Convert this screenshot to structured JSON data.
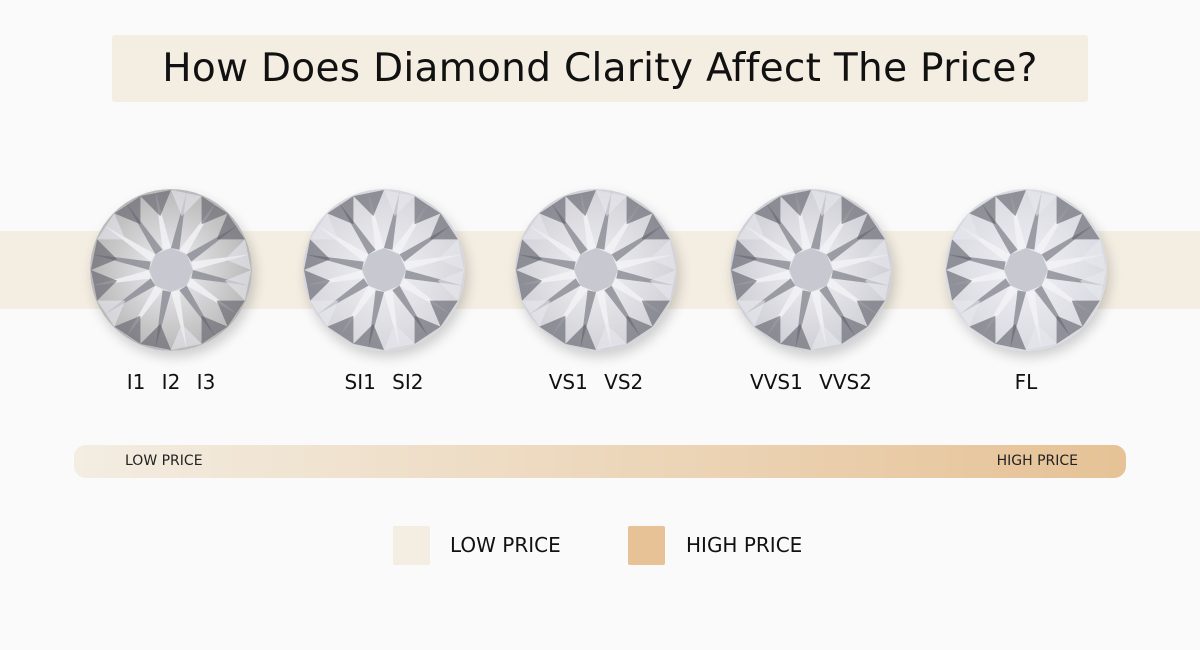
{
  "title": "How Does Diamond Clarity Affect The Price?",
  "colors": {
    "low_price": "#f3ede2",
    "high_price": "#e6c296",
    "band": "#f3ede2"
  },
  "diamonds": [
    {
      "grades": "I1  I2  I3",
      "tint": "#b9b9b9"
    },
    {
      "grades": "SI1  SI2",
      "tint": "#d6d6dc"
    },
    {
      "grades": "VS1  VS2",
      "tint": "#d2d2d8"
    },
    {
      "grades": "VVS1  VVS2",
      "tint": "#cfcfd6"
    },
    {
      "grades": "FL",
      "tint": "#dadae2"
    }
  ],
  "price_bar": {
    "low_label": "LOW PRICE",
    "high_label": "HIGH PRICE"
  },
  "legend": [
    {
      "label": "LOW PRICE",
      "color": "#f3ede2"
    },
    {
      "label": "HIGH PRICE",
      "color": "#e6c296"
    }
  ]
}
